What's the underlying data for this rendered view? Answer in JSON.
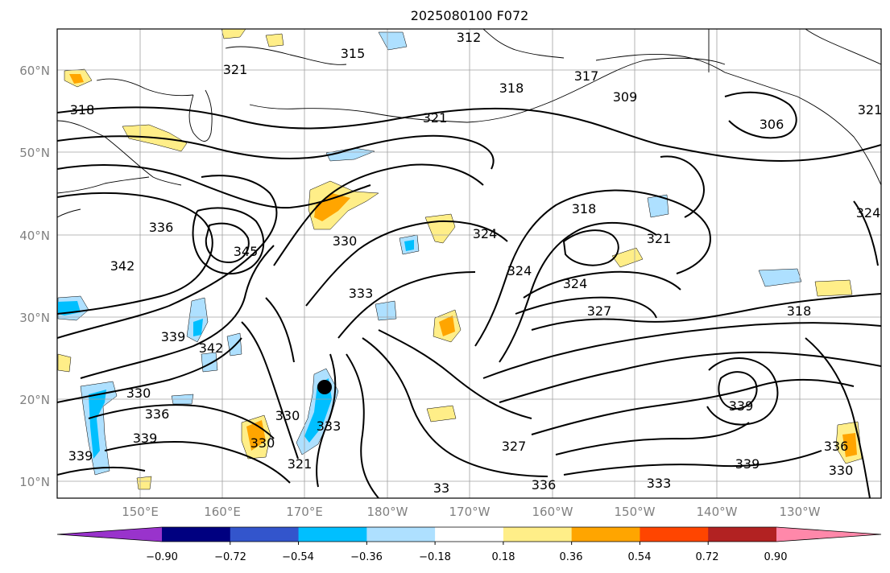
{
  "title": "2025080100 F072",
  "colors": {
    "ocean": "#ffffff",
    "contour": "#000000",
    "coast": "#000000",
    "grid": "#a0a0a0",
    "marker": "#000000"
  },
  "lat_ticks": [
    "60°N",
    "50°N",
    "40°N",
    "30°N",
    "20°N",
    "10°N"
  ],
  "lon_ticks": [
    "150°E",
    "160°E",
    "170°E",
    "180°W",
    "170°W",
    "160°W",
    "150°W",
    "140°W",
    "130°W"
  ],
  "colorbar": {
    "ticks": [
      "−0.90",
      "−0.72",
      "−0.54",
      "−0.36",
      "−0.18",
      "0.18",
      "0.36",
      "0.54",
      "0.72",
      "0.90"
    ],
    "colors": [
      "#9933cc",
      "#000080",
      "#3355cc",
      "#00bfff",
      "#aee0ff",
      "#ffffff",
      "#ffee88",
      "#ffa500",
      "#ff4500",
      "#b22222",
      "#ff88aa"
    ]
  },
  "contour_labels": [
    "312",
    "315",
    "321",
    "318",
    "318",
    "321",
    "317",
    "309",
    "306",
    "321",
    "336",
    "345",
    "342",
    "330",
    "324",
    "318",
    "321",
    "324",
    "324",
    "333",
    "327",
    "318",
    "339",
    "342",
    "330",
    "336",
    "339",
    "330",
    "330",
    "333",
    "327",
    "336",
    "333",
    "339",
    "339",
    "336",
    "330",
    "321",
    "339",
    "33",
    "324"
  ],
  "fill_patches": [
    {
      "level": "0.18",
      "color": "#ffee88"
    },
    {
      "level": "0.36",
      "color": "#ffa500"
    },
    {
      "level": "-0.18",
      "color": "#aee0ff"
    },
    {
      "level": "-0.36",
      "color": "#00bfff"
    }
  ],
  "marker": {
    "name": "storm-center"
  }
}
